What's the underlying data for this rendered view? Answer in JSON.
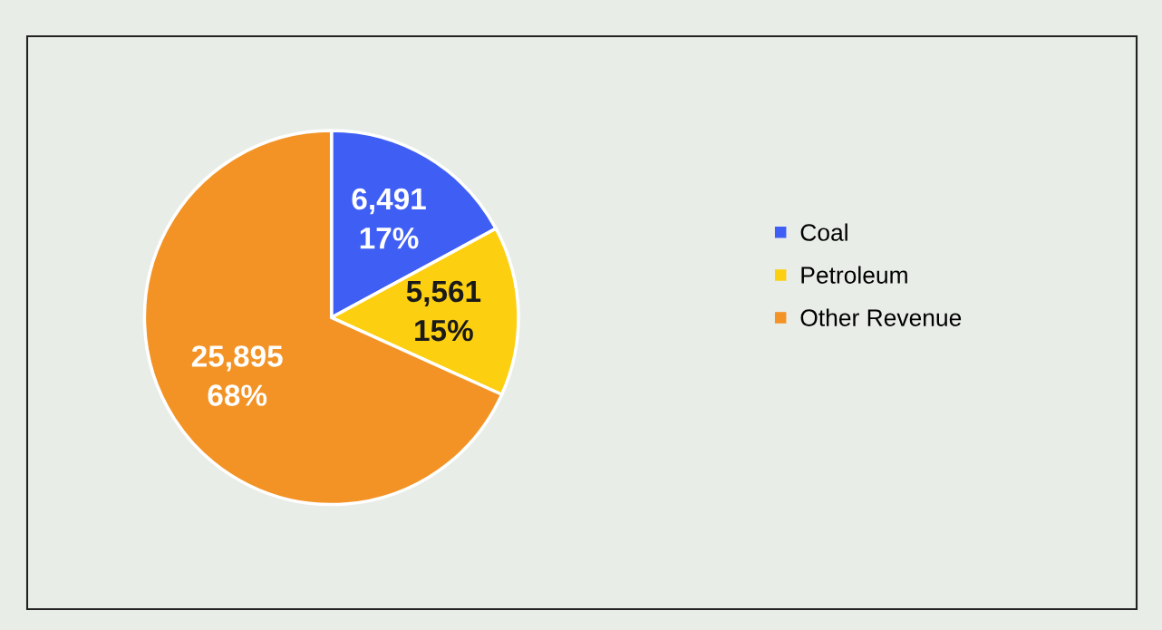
{
  "chart_data": {
    "type": "pie",
    "categories": [
      "Coal",
      "Petroleum",
      "Other Revenue"
    ],
    "values": [
      6491,
      5561,
      25895
    ],
    "colors": [
      "#3f5ff4",
      "#fccf10",
      "#f39325"
    ],
    "value_labels": [
      "6,491\n17%",
      "5,561\n15%",
      "25,895\n68%"
    ],
    "legend": "right"
  }
}
